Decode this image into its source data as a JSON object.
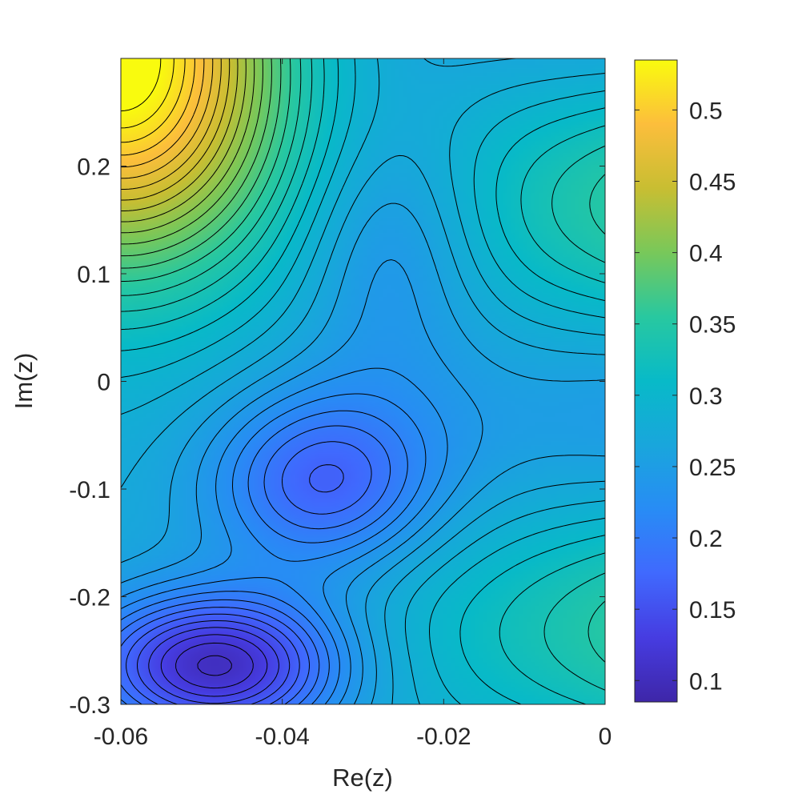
{
  "chart_data": {
    "type": "heatmap",
    "title": "",
    "xlabel": "Re(z)",
    "ylabel": "Im(z)",
    "xlim": [
      -0.06,
      0
    ],
    "ylim": [
      -0.3,
      0.3
    ],
    "x_ticks": [
      "-0.06",
      "-0.04",
      "-0.02",
      "0"
    ],
    "x_tick_values": [
      -0.06,
      -0.04,
      -0.02,
      0
    ],
    "y_ticks": [
      "-0.3",
      "-0.2",
      "-0.1",
      "0",
      "0.1",
      "0.2"
    ],
    "y_tick_values": [
      -0.3,
      -0.2,
      -0.1,
      0,
      0.1,
      0.2
    ],
    "colorbar": {
      "colormap": "parula",
      "range": [
        0.085,
        0.535
      ],
      "ticks": [
        "0.1",
        "0.15",
        "0.2",
        "0.25",
        "0.3",
        "0.35",
        "0.4",
        "0.45",
        "0.5"
      ],
      "tick_values": [
        0.1,
        0.15,
        0.2,
        0.25,
        0.3,
        0.35,
        0.4,
        0.45,
        0.5
      ]
    },
    "contour_lines": true,
    "contour_color": "#000000",
    "field_features": [
      {
        "kind": "minimum",
        "re": -0.047,
        "im": -0.26,
        "value": 0.09
      },
      {
        "kind": "local minimum",
        "re": -0.035,
        "im": -0.068,
        "value": 0.155
      },
      {
        "kind": "local minimum",
        "re": -0.027,
        "im": 0.135,
        "value": 0.205
      },
      {
        "kind": "maximum",
        "re": -0.06,
        "im": 0.3,
        "value": 0.53
      }
    ]
  }
}
